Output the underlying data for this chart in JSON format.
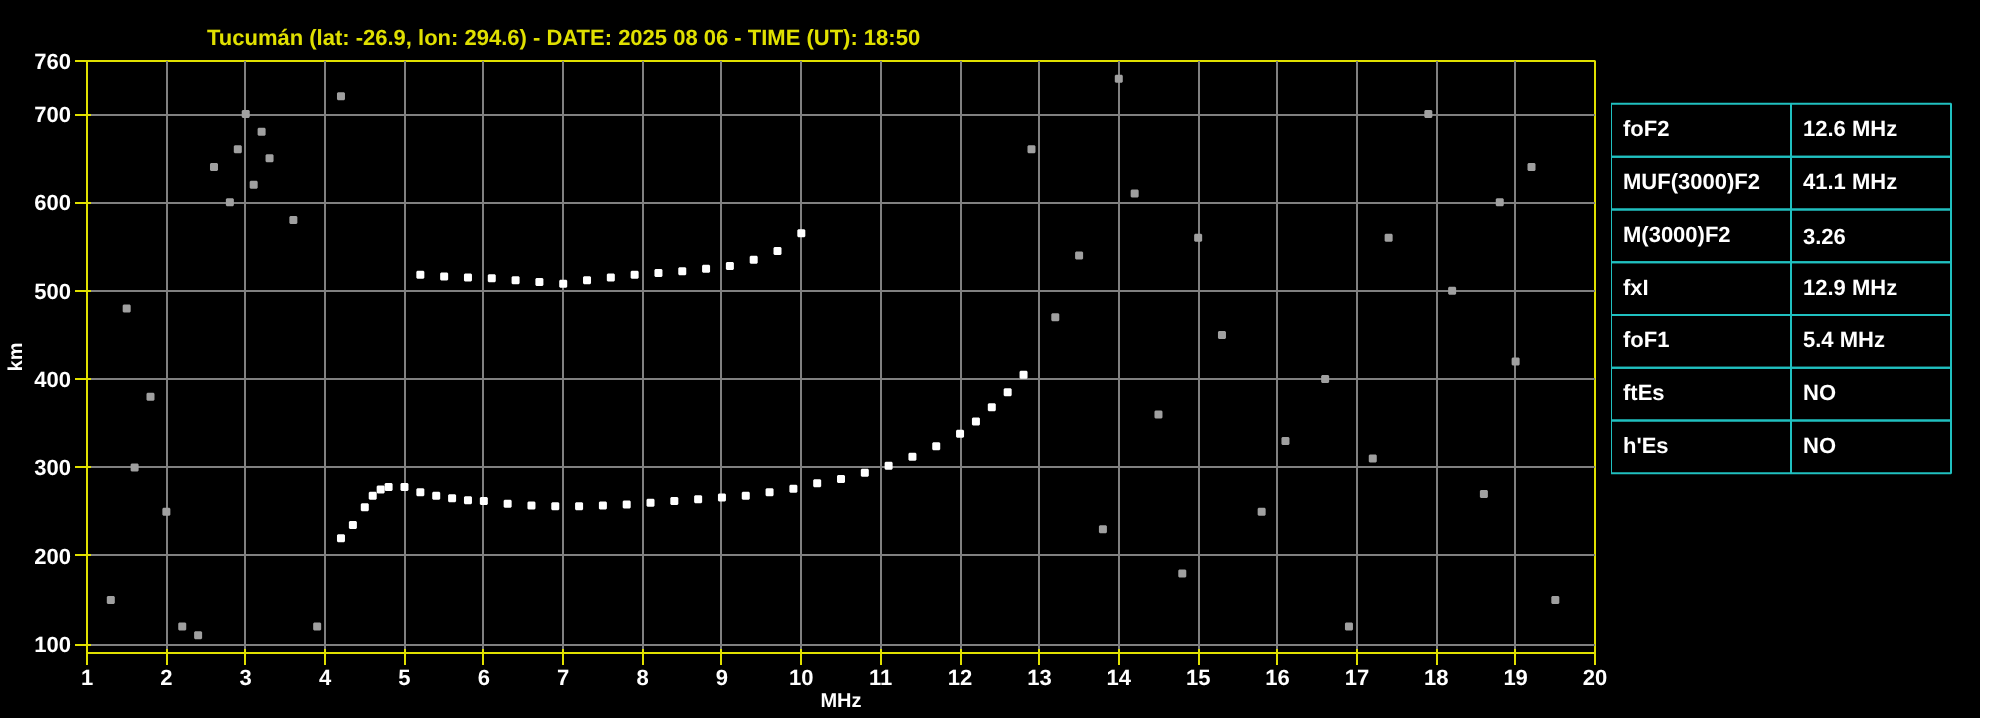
{
  "chart_data": [
    {
      "type": "scatter",
      "title": "Tucumán (lat: -26.9, lon: 294.6) - DATE: 2025 08 06 - TIME (UT): 18:50",
      "xlabel": "MHz",
      "ylabel": "km",
      "xlim": [
        1,
        20
      ],
      "ylim": [
        90,
        760
      ],
      "xticks": [
        1,
        2,
        3,
        4,
        5,
        6,
        7,
        8,
        9,
        10,
        11,
        12,
        13,
        14,
        15,
        16,
        17,
        18,
        19,
        20
      ],
      "yticks": [
        100,
        200,
        300,
        400,
        500,
        600,
        700,
        760
      ],
      "grid": true,
      "marker": "square",
      "series": [
        {
          "color": "#ffffff",
          "x": [
            4.2,
            4.35,
            4.5,
            4.6,
            4.7,
            4.8,
            5.0,
            5.2,
            5.4,
            5.6,
            5.8,
            6.0,
            6.3,
            6.6,
            6.9,
            7.2,
            7.5,
            7.8,
            8.1,
            8.4,
            8.7,
            9.0,
            9.3,
            9.6,
            9.9,
            10.2,
            10.5,
            10.8,
            11.1,
            11.4,
            11.7,
            12.0,
            12.2,
            12.4,
            12.6,
            12.8
          ],
          "values": [
            220,
            235,
            255,
            268,
            275,
            278,
            278,
            272,
            268,
            265,
            263,
            262,
            259,
            257,
            256,
            256,
            257,
            258,
            260,
            262,
            264,
            266,
            268,
            272,
            276,
            282,
            287,
            294,
            302,
            312,
            324,
            338,
            352,
            368,
            385,
            405
          ]
        },
        {
          "color": "#ffffff",
          "x": [
            5.2,
            5.5,
            5.8,
            6.1,
            6.4,
            6.7,
            7.0,
            7.3,
            7.6,
            7.9,
            8.2,
            8.5,
            8.8,
            9.1,
            9.4,
            9.7,
            10.0
          ],
          "values": [
            518,
            516,
            515,
            514,
            512,
            510,
            508,
            512,
            515,
            518,
            520,
            522,
            525,
            528,
            535,
            545,
            565
          ]
        },
        {
          "color": "#a0a0a0",
          "x": [
            1.3,
            1.6,
            2.2,
            2.6,
            2.9,
            3.0,
            3.1,
            3.2,
            2.8,
            3.3,
            1.8,
            4.2,
            13.5,
            14.2,
            15.3,
            16.1,
            17.4,
            18.6,
            19.2,
            13.8,
            14.8,
            16.6,
            17.9,
            19.5,
            2.4,
            3.6,
            1.5,
            15.8,
            18.2,
            14.5,
            12.9,
            16.9,
            19.0,
            2.0,
            3.9,
            13.2,
            17.2,
            18.8,
            15.0,
            14.0
          ],
          "values": [
            150,
            300,
            120,
            640,
            660,
            700,
            620,
            680,
            600,
            650,
            380,
            720,
            540,
            610,
            450,
            330,
            560,
            270,
            640,
            230,
            180,
            400,
            700,
            150,
            110,
            580,
            480,
            250,
            500,
            360,
            660,
            120,
            420,
            250,
            120,
            470,
            310,
            600,
            560,
            740
          ]
        }
      ]
    },
    {
      "type": "other",
      "annotations": [
        "foF2",
        "12.6 MHz",
        "MUF(3000)F2",
        "41.1 MHz",
        "M(3000)F2",
        "3.26",
        "fxI",
        "12.9 MHz",
        "foF1",
        "5.4 MHz",
        "ftEs",
        "NO",
        "h'Es",
        "NO"
      ]
    }
  ]
}
